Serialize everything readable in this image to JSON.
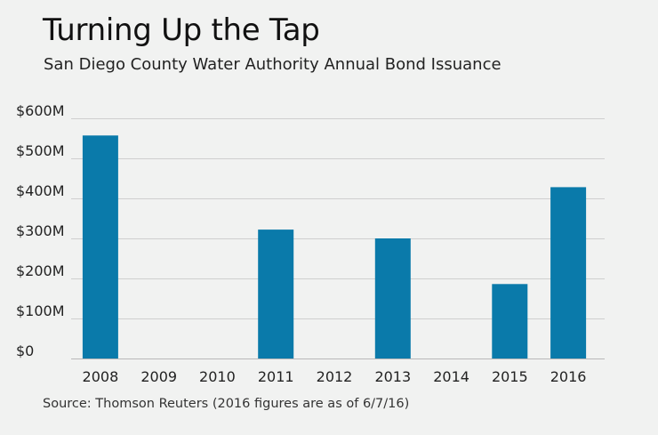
{
  "title": "Turning Up the Tap",
  "subtitle": "San Diego County Water Authority Annual Bond Issuance",
  "source": "Source: Thomson Reuters (2016 figures are as of 6/7/16)",
  "colors": {
    "bar": "#0a7aaa",
    "grid": "#cfcfcf",
    "background": "#f1f2f1",
    "axis_text": "#222222"
  },
  "chart_data": {
    "type": "bar",
    "title": "Turning Up the Tap",
    "subtitle": "San Diego County Water Authority Annual Bond Issuance",
    "xlabel": "",
    "ylabel": "",
    "categories": [
      "2008",
      "2009",
      "2010",
      "2011",
      "2012",
      "2013",
      "2014",
      "2015",
      "2016"
    ],
    "values": [
      557,
      0,
      0,
      322,
      0,
      300,
      0,
      186,
      428
    ],
    "units": "millions of dollars",
    "ylim": [
      0,
      600
    ],
    "yticks": [
      0,
      100,
      200,
      300,
      400,
      500,
      600
    ],
    "ytick_labels": [
      "$0",
      "$100M",
      "$200M",
      "$300M",
      "$400M",
      "$500M",
      "$600M"
    ],
    "grid": true,
    "legend": "none"
  }
}
